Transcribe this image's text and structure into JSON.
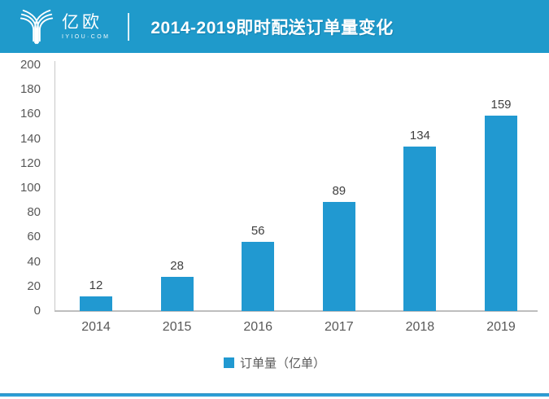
{
  "header": {
    "logo": {
      "name": "亿欧",
      "subtitle": "IYIOU·COM",
      "icon": "iyiou-branch-y-logo"
    },
    "title": "2014-2019即时配送订单量变化"
  },
  "colors": {
    "header_blue": "#1F9ACB",
    "bar_blue": "#2199D1",
    "axis_gray": "#C8C8C8",
    "tick_label_gray": "#595959",
    "value_label_gray": "#404040",
    "bottom_line_blue": "#2E9FD6"
  },
  "chart_data": {
    "type": "bar",
    "title": "2014-2019即时配送订单量变化",
    "categories": [
      "2014",
      "2015",
      "2016",
      "2017",
      "2018",
      "2019"
    ],
    "values": [
      12,
      28,
      56,
      89,
      134,
      159
    ],
    "series_name": "订单量（亿单）",
    "xlabel": "",
    "ylabel": "",
    "ylim": [
      0,
      200
    ],
    "yticks": [
      0,
      20,
      40,
      60,
      80,
      100,
      120,
      140,
      160,
      180,
      200
    ],
    "grid": false,
    "legend_position": "bottom",
    "bar_color": "#2199D1"
  },
  "legend": {
    "label": "订单量（亿单）"
  }
}
